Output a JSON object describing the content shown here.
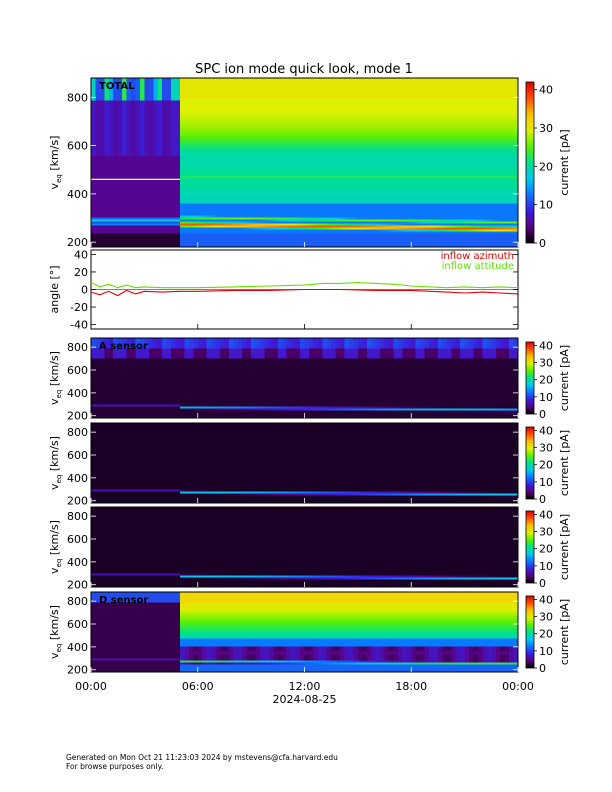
{
  "title": "SPC ion mode quick look, mode 1",
  "footer": {
    "line1": "Generated on Mon Oct 21 11:23:03 2024 by mstevens@cfa.harvard.edu",
    "line2": "For browse purposes only."
  },
  "colors": {
    "inflow_azimuth": "#e60000",
    "inflow_attitude": "#66dd00",
    "background": "#ffffff",
    "panel_background": "#000000"
  },
  "chart_data": [
    {
      "type": "heatmap",
      "panel": "total",
      "label": "TOTAL",
      "ylabel": "v_eq [km/s]",
      "ylim": [
        180,
        880
      ],
      "yticks": [
        200,
        400,
        600,
        800
      ],
      "xlim_hours": [
        0,
        24
      ],
      "colorbar": {
        "label": "current [pA]",
        "range": [
          0,
          42
        ],
        "ticks": [
          0,
          10,
          20,
          30,
          40
        ]
      },
      "features": {
        "mode_change_hour": 5,
        "main_beam_speed_before": 290,
        "main_beam_speed_after_start": 275,
        "main_beam_speed_after_end": 255
      }
    },
    {
      "type": "line",
      "panel": "angle",
      "ylabel": "angle [°]",
      "ylim": [
        -45,
        45
      ],
      "yticks": [
        -40,
        -20,
        0,
        20,
        40
      ],
      "xlim_hours": [
        0,
        24
      ],
      "series": [
        {
          "name": "inflow azimuth",
          "x": [
            0,
            0.5,
            1,
            1.5,
            2,
            2.5,
            3,
            4,
            5,
            6,
            8,
            10,
            12,
            14,
            16,
            18,
            20,
            21,
            22,
            23,
            24
          ],
          "y": [
            -3,
            -6,
            -2,
            -7,
            -1,
            -5,
            -2,
            -3,
            -2,
            -2,
            -1,
            -1,
            0,
            0,
            -1,
            -1,
            -3,
            -4,
            -3,
            -4,
            -5
          ]
        },
        {
          "name": "inflow attitude",
          "x": [
            0,
            0.5,
            1,
            1.5,
            2,
            2.5,
            3,
            4,
            5,
            6,
            8,
            10,
            12,
            13,
            14,
            15,
            16,
            17,
            18,
            20,
            21,
            22,
            23,
            24
          ],
          "y": [
            8,
            3,
            6,
            2,
            5,
            2,
            3,
            2,
            2,
            2,
            3,
            4,
            5,
            7,
            7,
            8,
            7,
            6,
            4,
            2,
            3,
            2,
            3,
            2
          ]
        }
      ]
    },
    {
      "type": "heatmap",
      "panel": "sensor-a",
      "label": "A sensor",
      "ylabel": "v_eq [km/s]",
      "ylim": [
        180,
        880
      ],
      "yticks": [
        200,
        400,
        600,
        800
      ],
      "xlim_hours": [
        0,
        24
      ],
      "colorbar": {
        "label": "current [pA]",
        "range": [
          0,
          42
        ],
        "ticks": [
          0,
          10,
          20,
          30,
          40
        ]
      }
    },
    {
      "type": "heatmap",
      "panel": "sensor-b",
      "label": "",
      "ylabel": "v_eq [km/s]",
      "ylim": [
        180,
        880
      ],
      "yticks": [
        200,
        400,
        600,
        800
      ],
      "xlim_hours": [
        0,
        24
      ],
      "colorbar": {
        "label": "current [pA]",
        "range": [
          0,
          42
        ],
        "ticks": [
          0,
          10,
          20,
          30,
          40
        ]
      }
    },
    {
      "type": "heatmap",
      "panel": "sensor-c",
      "label": "",
      "ylabel": "v_eq [km/s]",
      "ylim": [
        180,
        880
      ],
      "yticks": [
        200,
        400,
        600,
        800
      ],
      "xlim_hours": [
        0,
        24
      ],
      "colorbar": {
        "label": "current [pA]",
        "range": [
          0,
          42
        ],
        "ticks": [
          0,
          10,
          20,
          30,
          40
        ]
      }
    },
    {
      "type": "heatmap",
      "panel": "sensor-d",
      "label": "D sensor",
      "ylabel": "v_eq [km/s]",
      "ylim": [
        180,
        880
      ],
      "yticks": [
        200,
        400,
        600,
        800
      ],
      "xlim_hours": [
        0,
        24
      ],
      "colorbar": {
        "label": "current [pA]",
        "range": [
          0,
          42
        ],
        "ticks": [
          0,
          10,
          20,
          30,
          40
        ]
      }
    }
  ],
  "x_axis": {
    "tick_labels": [
      "00:00",
      "06:00",
      "12:00",
      "18:00",
      "00:00"
    ],
    "tick_hours": [
      0,
      6,
      12,
      18,
      24
    ],
    "date": "2024-08-25"
  },
  "legend": {
    "azimuth_label": "inflow azimuth",
    "attitude_label": "inflow attitude"
  }
}
